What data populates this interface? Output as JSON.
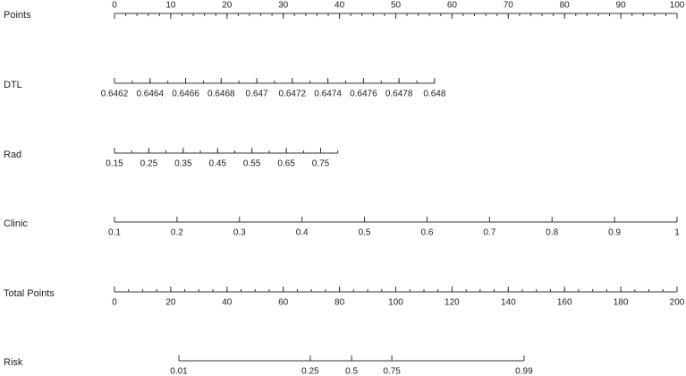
{
  "chart_data": {
    "type": "nomogram",
    "rows": [
      {
        "label": "Points",
        "lim": [
          0,
          100
        ],
        "span": [
          0,
          100
        ],
        "ticks": [
          0,
          10,
          20,
          30,
          40,
          50,
          60,
          70,
          80,
          90,
          100
        ],
        "minor_step": 2,
        "labels_above": true
      },
      {
        "label": "DTL",
        "lim": [
          0.6462,
          0.648
        ],
        "span": [
          0,
          56.9
        ],
        "ticks": [
          0.6462,
          0.6464,
          0.6466,
          0.6468,
          0.647,
          0.6472,
          0.6474,
          0.6476,
          0.6478,
          0.648
        ],
        "minor_step": 0.0001
      },
      {
        "label": "Rad",
        "lim": [
          0.15,
          0.8
        ],
        "span": [
          0,
          39.7
        ],
        "ticks": [
          0.15,
          0.25,
          0.35,
          0.45,
          0.55,
          0.65,
          0.75
        ],
        "minor_step": 0.05
      },
      {
        "label": "Clinic",
        "lim": [
          0.1,
          1
        ],
        "span": [
          0,
          100
        ],
        "ticks": [
          0.1,
          0.2,
          0.3,
          0.4,
          0.5,
          0.6,
          0.7,
          0.8,
          0.9,
          1
        ]
      },
      {
        "label": "Total Points",
        "lim": [
          0,
          200
        ],
        "span": [
          0,
          100
        ],
        "ticks": [
          0,
          20,
          40,
          60,
          80,
          100,
          120,
          140,
          160,
          180,
          200
        ],
        "minor_step": 5
      },
      {
        "label": "Risk",
        "ticks": [
          0.01,
          0.25,
          0.5,
          0.75,
          0.99
        ],
        "total_points": [
          22.9,
          69.6,
          84.3,
          98.6,
          145.6
        ]
      }
    ]
  }
}
